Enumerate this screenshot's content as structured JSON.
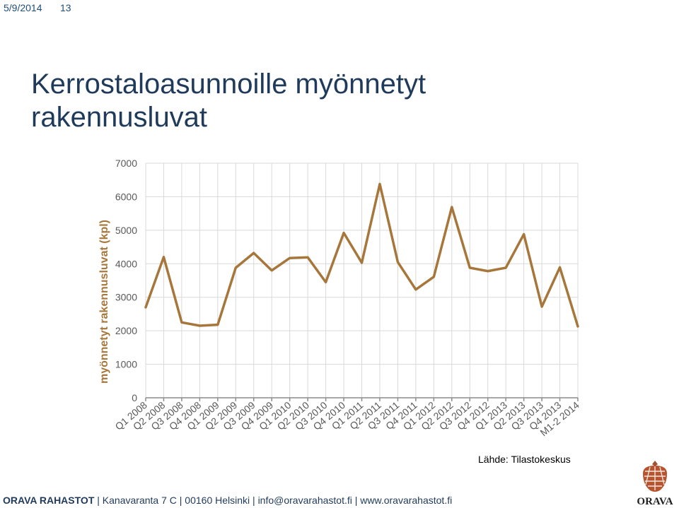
{
  "header": {
    "date": "5/9/2014",
    "page_number": "13"
  },
  "title_lines": [
    "Kerrostaloasunnoille myönnetyt",
    "rakennusluvat"
  ],
  "colors": {
    "line": "#a6763a",
    "title": "#1f3a5a",
    "grid": "#d9d9d9"
  },
  "chart_data": {
    "type": "line",
    "title": "",
    "xlabel": "",
    "ylabel": "myönnetyt rakennusluvat (kpl)",
    "ylim": [
      0,
      7000
    ],
    "yticks": [
      0,
      1000,
      2000,
      3000,
      4000,
      5000,
      6000,
      7000
    ],
    "grid": true,
    "categories": [
      "Q1 2008",
      "Q2 2008",
      "Q3 2008",
      "Q4 2008",
      "Q1 2009",
      "Q2 2009",
      "Q3 2009",
      "Q4 2009",
      "Q1 2010",
      "Q2 2010",
      "Q3 2010",
      "Q4 2010",
      "Q1 2011",
      "Q2 2011",
      "Q3 2011",
      "Q4 2011",
      "Q1 2012",
      "Q2 2012",
      "Q3 2012",
      "Q4 2012",
      "Q1 2013",
      "Q2 2013",
      "Q3 2013",
      "Q4 2013",
      "M1-2 2014"
    ],
    "values": [
      2700,
      4200,
      2250,
      2150,
      2180,
      3880,
      4320,
      3800,
      4170,
      4190,
      3450,
      4920,
      4030,
      6380,
      4050,
      3230,
      3610,
      5690,
      3880,
      3780,
      3880,
      4880,
      2720,
      3890,
      2130
    ]
  },
  "source": "Lähde: Tilastokeskus",
  "footer": {
    "brand": "ORAVA RAHASTOT",
    "address": "Kanavaranta 7 C",
    "city": "00160 Helsinki",
    "email": "info@oravarahastot.fi",
    "web": "www.oravarahastot.fi"
  },
  "logo": {
    "text": "ORAVA",
    "icon": "acorn-icon"
  }
}
